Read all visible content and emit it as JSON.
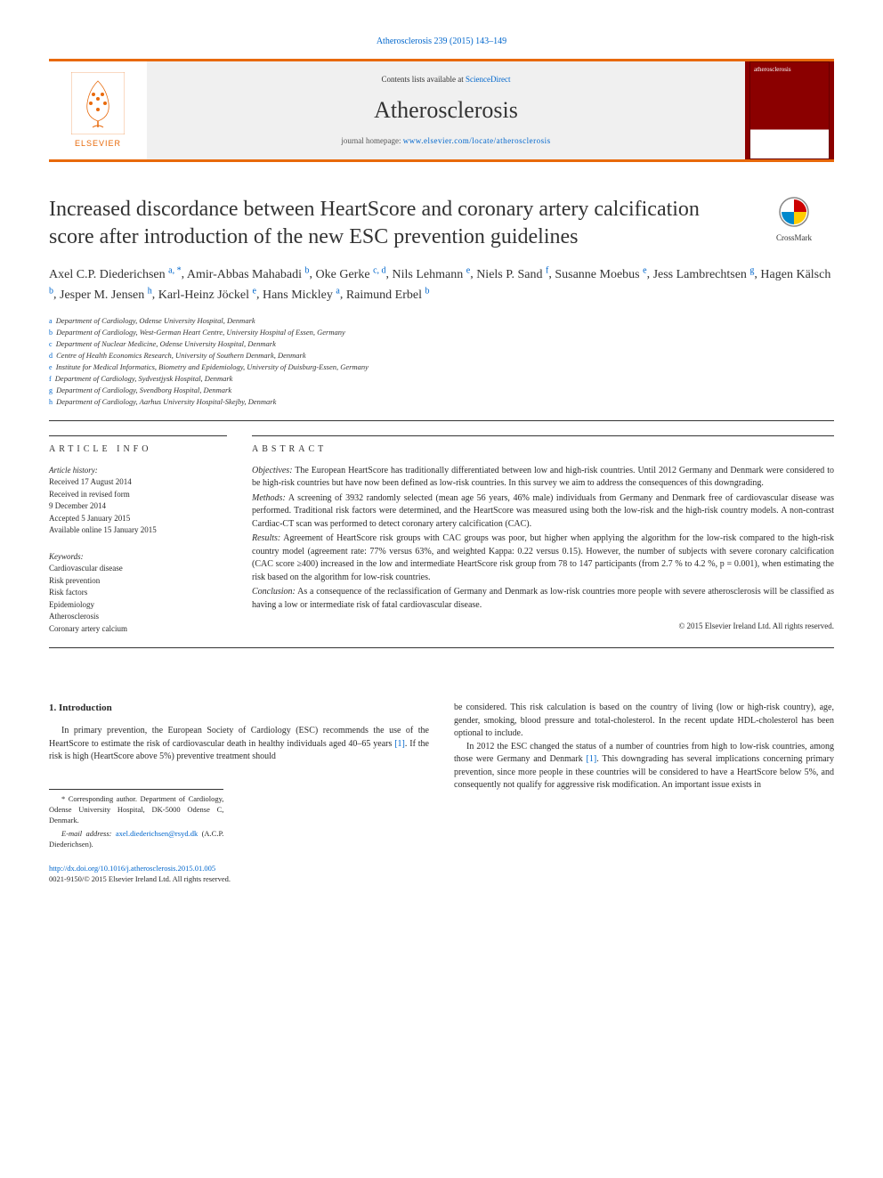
{
  "header": {
    "journal_ref": "Atherosclerosis 239 (2015) 143–149",
    "contents_prefix": "Contents lists available at ",
    "contents_link": "ScienceDirect",
    "journal_name": "Atherosclerosis",
    "homepage_prefix": "journal homepage: ",
    "homepage_url": "www.elsevier.com/locate/atherosclerosis",
    "publisher_label": "ELSEVIER",
    "cover_title": "atherosclerosis",
    "crossmark_label": "CrossMark"
  },
  "article": {
    "title": "Increased discordance between HeartScore and coronary artery calcification score after introduction of the new ESC prevention guidelines",
    "authors_html": [
      {
        "name": "Axel C.P. Diederichsen",
        "sup": "a, *"
      },
      {
        "name": "Amir-Abbas Mahabadi",
        "sup": "b"
      },
      {
        "name": "Oke Gerke",
        "sup": "c, d"
      },
      {
        "name": "Nils Lehmann",
        "sup": "e"
      },
      {
        "name": "Niels P. Sand",
        "sup": "f"
      },
      {
        "name": "Susanne Moebus",
        "sup": "e"
      },
      {
        "name": "Jess Lambrechtsen",
        "sup": "g"
      },
      {
        "name": "Hagen Kälsch",
        "sup": "b"
      },
      {
        "name": "Jesper M. Jensen",
        "sup": "h"
      },
      {
        "name": "Karl-Heinz Jöckel",
        "sup": "e"
      },
      {
        "name": "Hans Mickley",
        "sup": "a"
      },
      {
        "name": "Raimund Erbel",
        "sup": "b"
      }
    ],
    "affiliations": [
      {
        "key": "a",
        "text": "Department of Cardiology, Odense University Hospital, Denmark"
      },
      {
        "key": "b",
        "text": "Department of Cardiology, West-German Heart Centre, University Hospital of Essen, Germany"
      },
      {
        "key": "c",
        "text": "Department of Nuclear Medicine, Odense University Hospital, Denmark"
      },
      {
        "key": "d",
        "text": "Centre of Health Economics Research, University of Southern Denmark, Denmark"
      },
      {
        "key": "e",
        "text": "Institute for Medical Informatics, Biometry and Epidemiology, University of Duisburg-Essen, Germany"
      },
      {
        "key": "f",
        "text": "Department of Cardiology, Sydvestjysk Hospital, Denmark"
      },
      {
        "key": "g",
        "text": "Department of Cardiology, Svendborg Hospital, Denmark"
      },
      {
        "key": "h",
        "text": "Department of Cardiology, Aarhus University Hospital-Skejby, Denmark"
      }
    ]
  },
  "info": {
    "section_label": "ARTICLE INFO",
    "history_head": "Article history:",
    "history": [
      "Received 17 August 2014",
      "Received in revised form",
      "9 December 2014",
      "Accepted 5 January 2015",
      "Available online 15 January 2015"
    ],
    "keywords_head": "Keywords:",
    "keywords": [
      "Cardiovascular disease",
      "Risk prevention",
      "Risk factors",
      "Epidemiology",
      "Atherosclerosis",
      "Coronary artery calcium"
    ]
  },
  "abstract": {
    "section_label": "ABSTRACT",
    "objectives_label": "Objectives:",
    "objectives": " The European HeartScore has traditionally differentiated between low and high-risk countries. Until 2012 Germany and Denmark were considered to be high-risk countries but have now been defined as low-risk countries. In this survey we aim to address the consequences of this downgrading.",
    "methods_label": "Methods:",
    "methods": " A screening of 3932 randomly selected (mean age 56 years, 46% male) individuals from Germany and Denmark free of cardiovascular disease was performed. Traditional risk factors were determined, and the HeartScore was measured using both the low-risk and the high-risk country models. A non-contrast Cardiac-CT scan was performed to detect coronary artery calcification (CAC).",
    "results_label": "Results:",
    "results": " Agreement of HeartScore risk groups with CAC groups was poor, but higher when applying the algorithm for the low-risk compared to the high-risk country model (agreement rate: 77% versus 63%, and weighted Kappa: 0.22 versus 0.15). However, the number of subjects with severe coronary calcification (CAC score ≥400) increased in the low and intermediate HeartScore risk group from 78 to 147 participants (from 2.7 % to 4.2 %, p = 0.001), when estimating the risk based on the algorithm for low-risk countries.",
    "conclusion_label": "Conclusion:",
    "conclusion": " As a consequence of the reclassification of Germany and Denmark as low-risk countries more people with severe atherosclerosis will be classified as having a low or intermediate risk of fatal cardiovascular disease.",
    "copyright": "© 2015 Elsevier Ireland Ltd. All rights reserved."
  },
  "body": {
    "intro_head": "1.  Introduction",
    "intro_left": "In primary prevention, the European Society of Cardiology (ESC) recommends the use of the HeartScore to estimate the risk of cardiovascular death in healthy individuals aged 40–65 years [1]. If the risk is high (HeartScore above 5%) preventive treatment should",
    "intro_right_1": "be considered. This risk calculation is based on the country of living (low or high-risk country), age, gender, smoking, blood pressure and total-cholesterol. In the recent update HDL-cholesterol has been optional to include.",
    "intro_right_2": "In 2012 the ESC changed the status of a number of countries from high to low-risk countries, among those were Germany and Denmark [1]. This downgrading has several implications concerning primary prevention, since more people in these countries will be considered to have a HeartScore below 5%, and consequently not qualify for aggressive risk modification. An important issue exists in"
  },
  "footer": {
    "corr_label": "* Corresponding author. Department of Cardiology, Odense University Hospital, DK-5000 Odense C, Denmark.",
    "email_label": "E-mail address:",
    "email": "axel.diederichsen@rsyd.dk",
    "email_suffix": " (A.C.P. Diederichsen).",
    "doi": "http://dx.doi.org/10.1016/j.atherosclerosis.2015.01.005",
    "issn_copy": "0021-9150/© 2015 Elsevier Ireland Ltd. All rights reserved."
  },
  "style": {
    "accent_color": "#e8690a",
    "link_color": "#0066cc",
    "text_color": "#2a2a2a",
    "body_fontsize": 10,
    "title_fontsize": 24,
    "journal_fontsize": 26
  }
}
